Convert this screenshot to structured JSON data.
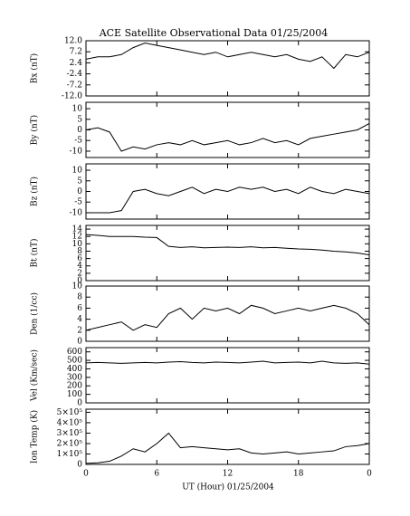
{
  "title": "ACE Satellite Observational Data  01/25/2004",
  "x_label": "UT (Hour)  01/25/2004",
  "chart_data": [
    {
      "type": "line",
      "y_label": "Bx (nT)",
      "xlim": [
        0,
        24
      ],
      "xticks": [
        0,
        6,
        12,
        18,
        {
          "value": 24,
          "label": "0"
        }
      ],
      "ylim": [
        -12,
        12
      ],
      "yticks": [
        {
          "value": 12,
          "label": "12.0"
        },
        7.2,
        2.4,
        -2.4,
        -7.2,
        {
          "value": -12,
          "label": "-12.0"
        }
      ],
      "x": [
        0,
        1,
        2,
        3,
        4,
        5,
        6,
        7,
        8,
        9,
        10,
        11,
        12,
        13,
        14,
        15,
        16,
        17,
        18,
        19,
        20,
        21,
        22,
        23,
        24
      ],
      "series": [
        {
          "color": "#000000",
          "values": [
            4,
            5,
            5,
            6,
            9,
            11,
            10,
            9,
            8,
            7,
            6,
            7,
            5,
            6,
            7,
            6,
            5,
            6,
            4,
            3,
            5,
            0,
            6,
            5,
            7
          ]
        }
      ]
    },
    {
      "type": "line",
      "y_label": "By (nT)",
      "xlim": [
        0,
        24
      ],
      "xticks": [
        0,
        6,
        12,
        18,
        {
          "value": 24,
          "label": "0"
        }
      ],
      "ylim": [
        -13,
        13
      ],
      "yticks": [
        10,
        5,
        0,
        -5,
        -10
      ],
      "x": [
        0,
        1,
        2,
        3,
        4,
        5,
        6,
        7,
        8,
        9,
        10,
        11,
        12,
        13,
        14,
        15,
        16,
        17,
        18,
        19,
        20,
        21,
        22,
        23,
        24
      ],
      "series": [
        {
          "color": "#000000",
          "values": [
            0,
            1,
            -1,
            -10,
            -8,
            -9,
            -7,
            -6,
            -7,
            -5,
            -7,
            -6,
            -5,
            -7,
            -6,
            -4,
            -6,
            -5,
            -7,
            -4,
            -3,
            -2,
            -1,
            0,
            3
          ]
        }
      ]
    },
    {
      "type": "line",
      "y_label": "Bz (nT)",
      "xlim": [
        0,
        24
      ],
      "xticks": [
        0,
        6,
        12,
        18,
        {
          "value": 24,
          "label": "0"
        }
      ],
      "ylim": [
        -13,
        13
      ],
      "yticks": [
        10,
        5,
        0,
        -5,
        -10
      ],
      "x": [
        0,
        1,
        2,
        3,
        4,
        5,
        6,
        7,
        8,
        9,
        10,
        11,
        12,
        13,
        14,
        15,
        16,
        17,
        18,
        19,
        20,
        21,
        22,
        23,
        24
      ],
      "series": [
        {
          "color": "#000000",
          "values": [
            -10,
            -10,
            -10,
            -9,
            0,
            1,
            -1,
            -2,
            0,
            2,
            -1,
            1,
            0,
            2,
            1,
            2,
            0,
            1,
            -1,
            2,
            0,
            -1,
            1,
            0,
            -1
          ]
        }
      ]
    },
    {
      "type": "line",
      "y_label": "Bt (nT)",
      "xlim": [
        0,
        24
      ],
      "xticks": [
        0,
        6,
        12,
        18,
        {
          "value": 24,
          "label": "0"
        }
      ],
      "ylim": [
        0,
        15
      ],
      "yticks": [
        14,
        12,
        10,
        8,
        6,
        4,
        2,
        0
      ],
      "x": [
        0,
        1,
        2,
        3,
        4,
        5,
        6,
        7,
        8,
        9,
        10,
        11,
        12,
        13,
        14,
        15,
        16,
        17,
        18,
        19,
        20,
        21,
        22,
        23,
        24
      ],
      "series": [
        {
          "color": "#000000",
          "values": [
            12.5,
            12.3,
            12,
            12,
            12,
            11.8,
            11.7,
            9.3,
            9,
            9.2,
            8.9,
            9,
            9.1,
            9,
            9.2,
            8.9,
            9,
            8.8,
            8.6,
            8.5,
            8.3,
            8,
            7.8,
            7.5,
            7
          ]
        }
      ]
    },
    {
      "type": "line",
      "y_label": "Den (1/cc)",
      "xlim": [
        0,
        24
      ],
      "xticks": [
        0,
        6,
        12,
        18,
        {
          "value": 24,
          "label": "0"
        }
      ],
      "ylim": [
        0,
        10
      ],
      "yticks": [
        10,
        8,
        6,
        4,
        2,
        0
      ],
      "x": [
        0,
        1,
        2,
        3,
        4,
        5,
        6,
        7,
        8,
        9,
        10,
        11,
        12,
        13,
        14,
        15,
        16,
        17,
        18,
        19,
        20,
        21,
        22,
        23,
        24
      ],
      "series": [
        {
          "color": "#000000",
          "values": [
            2,
            2.5,
            3,
            3.5,
            2,
            3,
            2.5,
            5,
            6,
            4,
            6,
            5.5,
            6,
            5,
            6.5,
            6,
            5,
            5.5,
            6,
            5.5,
            6,
            6.5,
            6,
            5,
            3
          ]
        }
      ]
    },
    {
      "type": "line",
      "y_label": "Vel (Km/sec)",
      "xlim": [
        0,
        24
      ],
      "xticks": [
        0,
        6,
        12,
        18,
        {
          "value": 24,
          "label": "0"
        }
      ],
      "ylim": [
        0,
        650
      ],
      "yticks": [
        600,
        500,
        400,
        300,
        200,
        100,
        0
      ],
      "x": [
        0,
        1,
        2,
        3,
        4,
        5,
        6,
        7,
        8,
        9,
        10,
        11,
        12,
        13,
        14,
        15,
        16,
        17,
        18,
        19,
        20,
        21,
        22,
        23,
        24
      ],
      "series": [
        {
          "color": "#000000",
          "values": [
            470,
            475,
            470,
            465,
            470,
            475,
            470,
            480,
            485,
            475,
            470,
            480,
            475,
            470,
            480,
            490,
            470,
            475,
            480,
            470,
            490,
            470,
            465,
            470,
            455
          ]
        }
      ]
    },
    {
      "type": "line",
      "y_label": "Ion Temp (K)",
      "xlim": [
        0,
        24
      ],
      "xticks": [
        0,
        6,
        12,
        18,
        {
          "value": 24,
          "label": "0"
        }
      ],
      "ylim": [
        0,
        530000
      ],
      "yticks": [
        {
          "value": 500000,
          "label": "5×10⁵"
        },
        {
          "value": 400000,
          "label": "4×10⁵"
        },
        {
          "value": 300000,
          "label": "3×10⁵"
        },
        {
          "value": 200000,
          "label": "2×10⁵"
        },
        {
          "value": 100000,
          "label": "1×10⁵"
        },
        0
      ],
      "x": [
        0,
        1,
        2,
        3,
        4,
        5,
        6,
        7,
        8,
        9,
        10,
        11,
        12,
        13,
        14,
        15,
        16,
        17,
        18,
        19,
        20,
        21,
        22,
        23,
        24
      ],
      "series": [
        {
          "color": "#000000",
          "values": [
            10000,
            15000,
            30000,
            80000,
            150000,
            120000,
            200000,
            300000,
            160000,
            170000,
            160000,
            150000,
            140000,
            150000,
            110000,
            100000,
            110000,
            120000,
            100000,
            110000,
            120000,
            130000,
            170000,
            180000,
            200000
          ]
        }
      ]
    }
  ]
}
